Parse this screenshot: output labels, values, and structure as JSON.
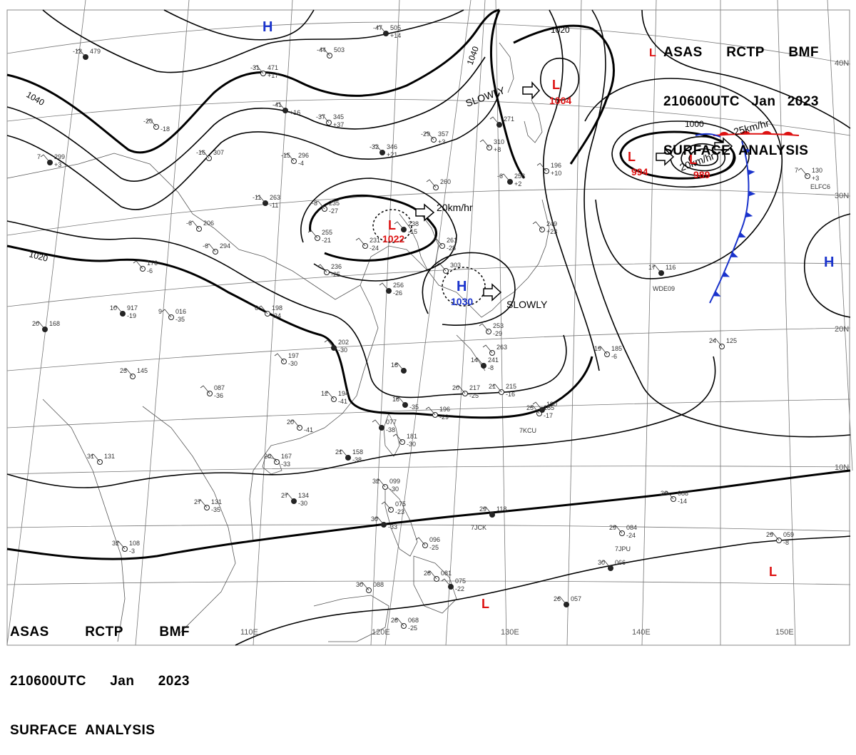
{
  "header": {
    "line1": [
      "ASAS",
      "RCTP",
      "BMF"
    ],
    "line2": [
      "210600UTC",
      "Jan",
      "2023"
    ],
    "line3": "SURFACE  ANALYSIS"
  },
  "grid": {
    "lon_labels": [
      "110E",
      "120E",
      "130E",
      "140E",
      "150E"
    ],
    "lat_labels": [
      "40N",
      "30N",
      "20N",
      "10N"
    ]
  },
  "isobar_labels": [
    "1040",
    "1040",
    "1020",
    "1020",
    "1000"
  ],
  "pressure_centers": [
    {
      "type": "H",
      "pressure": "",
      "color": "#1a33cc"
    },
    {
      "type": "H",
      "pressure": "",
      "color": "#1a33cc"
    },
    {
      "type": "H",
      "pressure": "1030",
      "color": "#1a33cc"
    },
    {
      "type": "L",
      "pressure": "1004",
      "color": "#dd1111"
    },
    {
      "type": "L",
      "pressure": "1022",
      "color": "#dd1111"
    },
    {
      "type": "L",
      "pressure": "994",
      "color": "#dd1111"
    },
    {
      "type": "L",
      "pressure": "989",
      "color": "#dd1111"
    },
    {
      "type": "L",
      "pressure": "",
      "color": "#dd1111"
    },
    {
      "type": "L",
      "pressure": "",
      "color": "#dd1111"
    },
    {
      "type": "L",
      "pressure": "",
      "color": "#dd1111"
    }
  ],
  "movements": [
    "SLOWLY",
    "20km/hr",
    "SLOWLY",
    "20km/hr",
    "25km/hr"
  ],
  "colors": {
    "high": "#1a33cc",
    "low": "#dd1111",
    "cold_front": "#1a33cc",
    "warm_front": "#dd1111",
    "isobar": "#000000",
    "coast": "#555555",
    "grid": "#777777"
  },
  "station_labels": [
    "7KCU",
    "7JCK",
    "7JPU",
    "WDE09",
    "ELFC6"
  ],
  "stations": [
    {
      "t": "-47",
      "p": "505",
      "d": "+14"
    },
    {
      "t": "-44",
      "p": "503",
      "d": ""
    },
    {
      "t": "-31",
      "p": "471",
      "d": "+17"
    },
    {
      "t": "-41",
      "p": "",
      "d": "+16"
    },
    {
      "t": "-37",
      "p": "345",
      "d": "+37"
    },
    {
      "t": "-29",
      "p": "357",
      "d": "+3"
    },
    {
      "t": "-32",
      "p": "346",
      "d": "+21"
    },
    {
      "t": "-16",
      "p": "307",
      "d": ""
    },
    {
      "t": "-15",
      "p": "296",
      "d": "-4"
    },
    {
      "t": "-11",
      "p": "263",
      "d": "-11"
    },
    {
      "t": "-8",
      "p": "235",
      "d": "-27"
    },
    {
      "t": "",
      "p": "255",
      "d": "-21"
    },
    {
      "t": "",
      "p": "238",
      "d": "-15"
    },
    {
      "t": "",
      "p": "231",
      "d": "-24"
    },
    {
      "t": "",
      "p": "236",
      "d": "-25"
    },
    {
      "t": "",
      "p": "256",
      "d": "-26"
    },
    {
      "t": "",
      "p": "303",
      "d": ""
    },
    {
      "t": "",
      "p": "260",
      "d": ""
    },
    {
      "t": "-6",
      "p": "258",
      "d": "+2"
    },
    {
      "t": "",
      "p": "196",
      "d": "+10"
    },
    {
      "t": "",
      "p": "249",
      "d": "+23"
    },
    {
      "t": "",
      "p": "271",
      "d": ""
    },
    {
      "t": "",
      "p": "310",
      "d": "+8"
    },
    {
      "t": "",
      "p": "176",
      "d": "-6"
    },
    {
      "t": "10",
      "p": "917",
      "d": "-19"
    },
    {
      "t": "9",
      "p": "016",
      "d": "-35"
    },
    {
      "t": "6",
      "p": "198",
      "d": "-24"
    },
    {
      "t": "20",
      "p": "168",
      "d": ""
    },
    {
      "t": "23",
      "p": "145",
      "d": ""
    },
    {
      "t": "",
      "p": "197",
      "d": "-30"
    },
    {
      "t": "",
      "p": "202",
      "d": "-30"
    },
    {
      "t": "",
      "p": "087",
      "d": "-36"
    },
    {
      "t": "12",
      "p": "194",
      "d": "-41"
    },
    {
      "t": "14",
      "p": "241",
      "d": "-8"
    },
    {
      "t": "20",
      "p": "217",
      "d": "-25"
    },
    {
      "t": "21",
      "p": "215",
      "d": "-16"
    },
    {
      "t": "18",
      "p": "",
      "d": "-35"
    },
    {
      "t": "",
      "p": "196",
      "d": "-29"
    },
    {
      "t": "25",
      "p": "185",
      "d": "-17"
    },
    {
      "t": "",
      "p": "077",
      "d": "-38"
    },
    {
      "t": "",
      "p": "181",
      "d": "-30"
    },
    {
      "t": "20",
      "p": "167",
      "d": "-33"
    },
    {
      "t": "21",
      "p": "158",
      "d": "-38"
    },
    {
      "t": "31",
      "p": "131",
      "d": ""
    },
    {
      "t": "27",
      "p": "131",
      "d": "-35"
    },
    {
      "t": "27",
      "p": "134",
      "d": "-30"
    },
    {
      "t": "32",
      "p": "099",
      "d": "-30"
    },
    {
      "t": "",
      "p": "075",
      "d": "-23"
    },
    {
      "t": "30",
      "p": "",
      "d": "-33"
    },
    {
      "t": "",
      "p": "096",
      "d": "-25"
    },
    {
      "t": "28",
      "p": "081",
      "d": ""
    },
    {
      "t": "",
      "p": "075",
      "d": "-22"
    },
    {
      "t": "30",
      "p": "088",
      "d": ""
    },
    {
      "t": "28",
      "p": "068",
      "d": "-25"
    },
    {
      "t": "29",
      "p": "118",
      "d": ""
    },
    {
      "t": "32",
      "p": "108",
      "d": "-3"
    },
    {
      "t": "29",
      "p": "084",
      "d": "-24"
    },
    {
      "t": "30",
      "p": "066",
      "d": ""
    },
    {
      "t": "30",
      "p": "088",
      "d": "-14"
    },
    {
      "t": "29",
      "p": "059",
      "d": "-8"
    },
    {
      "t": "26",
      "p": "057",
      "d": ""
    },
    {
      "t": "24",
      "p": "125",
      "d": ""
    },
    {
      "t": "19",
      "p": "185",
      "d": "-6"
    },
    {
      "t": "17",
      "p": "116",
      "d": ""
    },
    {
      "t": "7",
      "p": "130",
      "d": "+3"
    },
    {
      "t": "",
      "p": "253",
      "d": "-29"
    },
    {
      "t": "-12",
      "p": "479",
      "d": ""
    },
    {
      "t": "-20",
      "p": "",
      "d": "-18"
    },
    {
      "t": "-6",
      "p": "206",
      "d": ""
    },
    {
      "t": "7",
      "p": "299",
      "d": "+3"
    },
    {
      "t": "-6",
      "p": "294",
      "d": ""
    },
    {
      "t": "",
      "p": "261",
      "d": "-28"
    },
    {
      "t": "18",
      "p": "",
      "d": ""
    },
    {
      "t": "20",
      "p": "",
      "d": "-41"
    },
    {
      "t": "",
      "p": "263",
      "d": ""
    },
    {
      "t": "",
      "p": "190",
      "d": ""
    }
  ]
}
